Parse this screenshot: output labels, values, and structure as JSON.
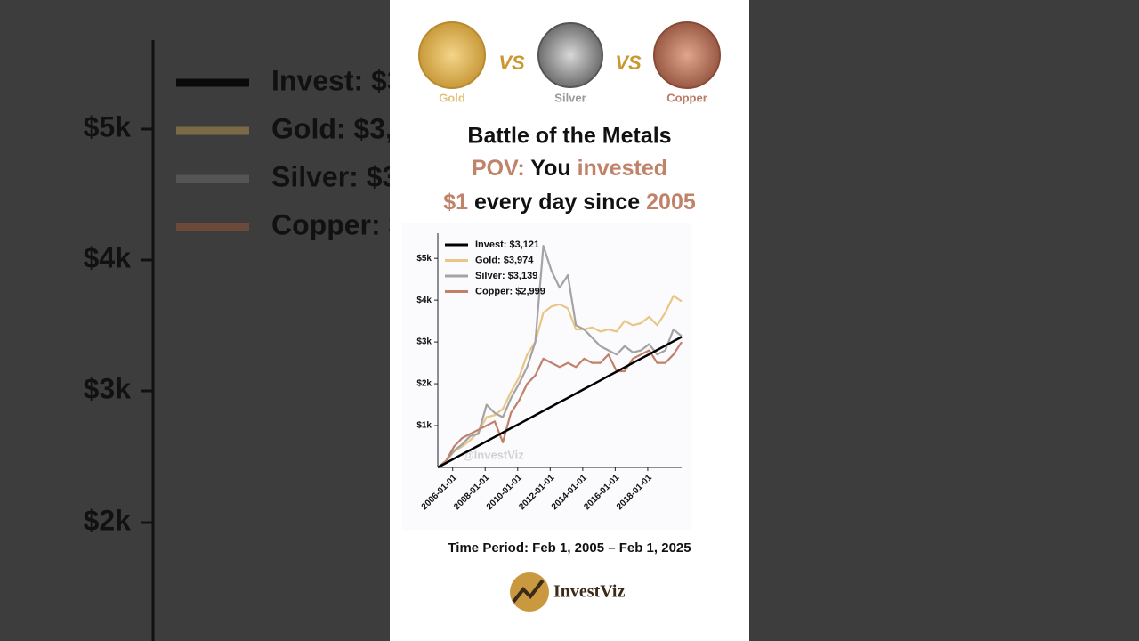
{
  "header": {
    "coins": [
      "Gold",
      "Silver",
      "Copper"
    ],
    "vs": "VS"
  },
  "footer": {
    "period": "Time Period: Feb 1, 2005 – Feb 1, 2025",
    "logo": "InvestViz"
  },
  "chart_data": {
    "type": "line",
    "title": "Battle of the Metals",
    "subtitle_lines": [
      [
        "POV:",
        " You ",
        "invested"
      ],
      [
        "$1",
        " every day since ",
        "2005"
      ]
    ],
    "watermark": "@InvestViz",
    "x": [
      "2005-02-01",
      "2005-08-01",
      "2006-02-01",
      "2006-08-01",
      "2007-02-01",
      "2007-08-01",
      "2008-02-01",
      "2008-08-01",
      "2009-02-01",
      "2009-08-01",
      "2010-02-01",
      "2010-08-01",
      "2011-02-01",
      "2011-08-01",
      "2012-02-01",
      "2012-08-01",
      "2013-02-01",
      "2013-08-01",
      "2014-02-01",
      "2014-08-01",
      "2015-02-01",
      "2015-08-01",
      "2016-02-01",
      "2016-08-01",
      "2017-02-01",
      "2017-08-01",
      "2018-02-01",
      "2018-08-01",
      "2019-02-01",
      "2019-08-01",
      "2020-02-01"
    ],
    "xlim": [
      "2005-02-01",
      "2020-02-01"
    ],
    "xticks": [
      "2006-01-01",
      "2008-01-01",
      "2010-01-01",
      "2012-01-01",
      "2014-01-01",
      "2016-01-01",
      "2018-01-01"
    ],
    "ylim": [
      0,
      5600
    ],
    "yticks": [
      {
        "value": 1000,
        "label": "$1k"
      },
      {
        "value": 2000,
        "label": "$2k"
      },
      {
        "value": 3000,
        "label": "$3k"
      },
      {
        "value": 4000,
        "label": "$4k"
      },
      {
        "value": 5000,
        "label": "$5k"
      }
    ],
    "series": [
      {
        "name": "Invest: $3,121",
        "color": "#000000",
        "values": [
          0,
          104,
          208,
          312,
          416,
          520,
          624,
          728,
          832,
          936,
          1040,
          1144,
          1248,
          1352,
          1456,
          1560,
          1664,
          1768,
          1873,
          1977,
          2081,
          2185,
          2289,
          2393,
          2497,
          2601,
          2705,
          2809,
          2913,
          3017,
          3121
        ]
      },
      {
        "name": "Gold: $3,974",
        "color": "#e8c684",
        "values": [
          0,
          150,
          380,
          500,
          650,
          850,
          1200,
          1250,
          1400,
          1800,
          2150,
          2700,
          3000,
          3700,
          3850,
          3900,
          3800,
          3300,
          3300,
          3350,
          3250,
          3300,
          3250,
          3500,
          3400,
          3450,
          3600,
          3400,
          3700,
          4100,
          3974
        ]
      },
      {
        "name": "Silver: $3,139",
        "color": "#a3a3a3",
        "values": [
          0,
          150,
          400,
          550,
          750,
          800,
          1500,
          1300,
          1200,
          1650,
          2000,
          2400,
          3000,
          5300,
          4700,
          4300,
          4600,
          3400,
          3300,
          3100,
          2900,
          2800,
          2700,
          2900,
          2750,
          2800,
          2950,
          2700,
          2800,
          3300,
          3139
        ]
      },
      {
        "name": "Copper: $2,999",
        "color": "#c0806a",
        "values": [
          0,
          150,
          500,
          700,
          800,
          900,
          1000,
          1100,
          600,
          1300,
          1600,
          2000,
          2200,
          2600,
          2500,
          2400,
          2500,
          2400,
          2600,
          2500,
          2500,
          2700,
          2300,
          2300,
          2600,
          2700,
          2800,
          2500,
          2500,
          2700,
          2999
        ]
      }
    ]
  }
}
